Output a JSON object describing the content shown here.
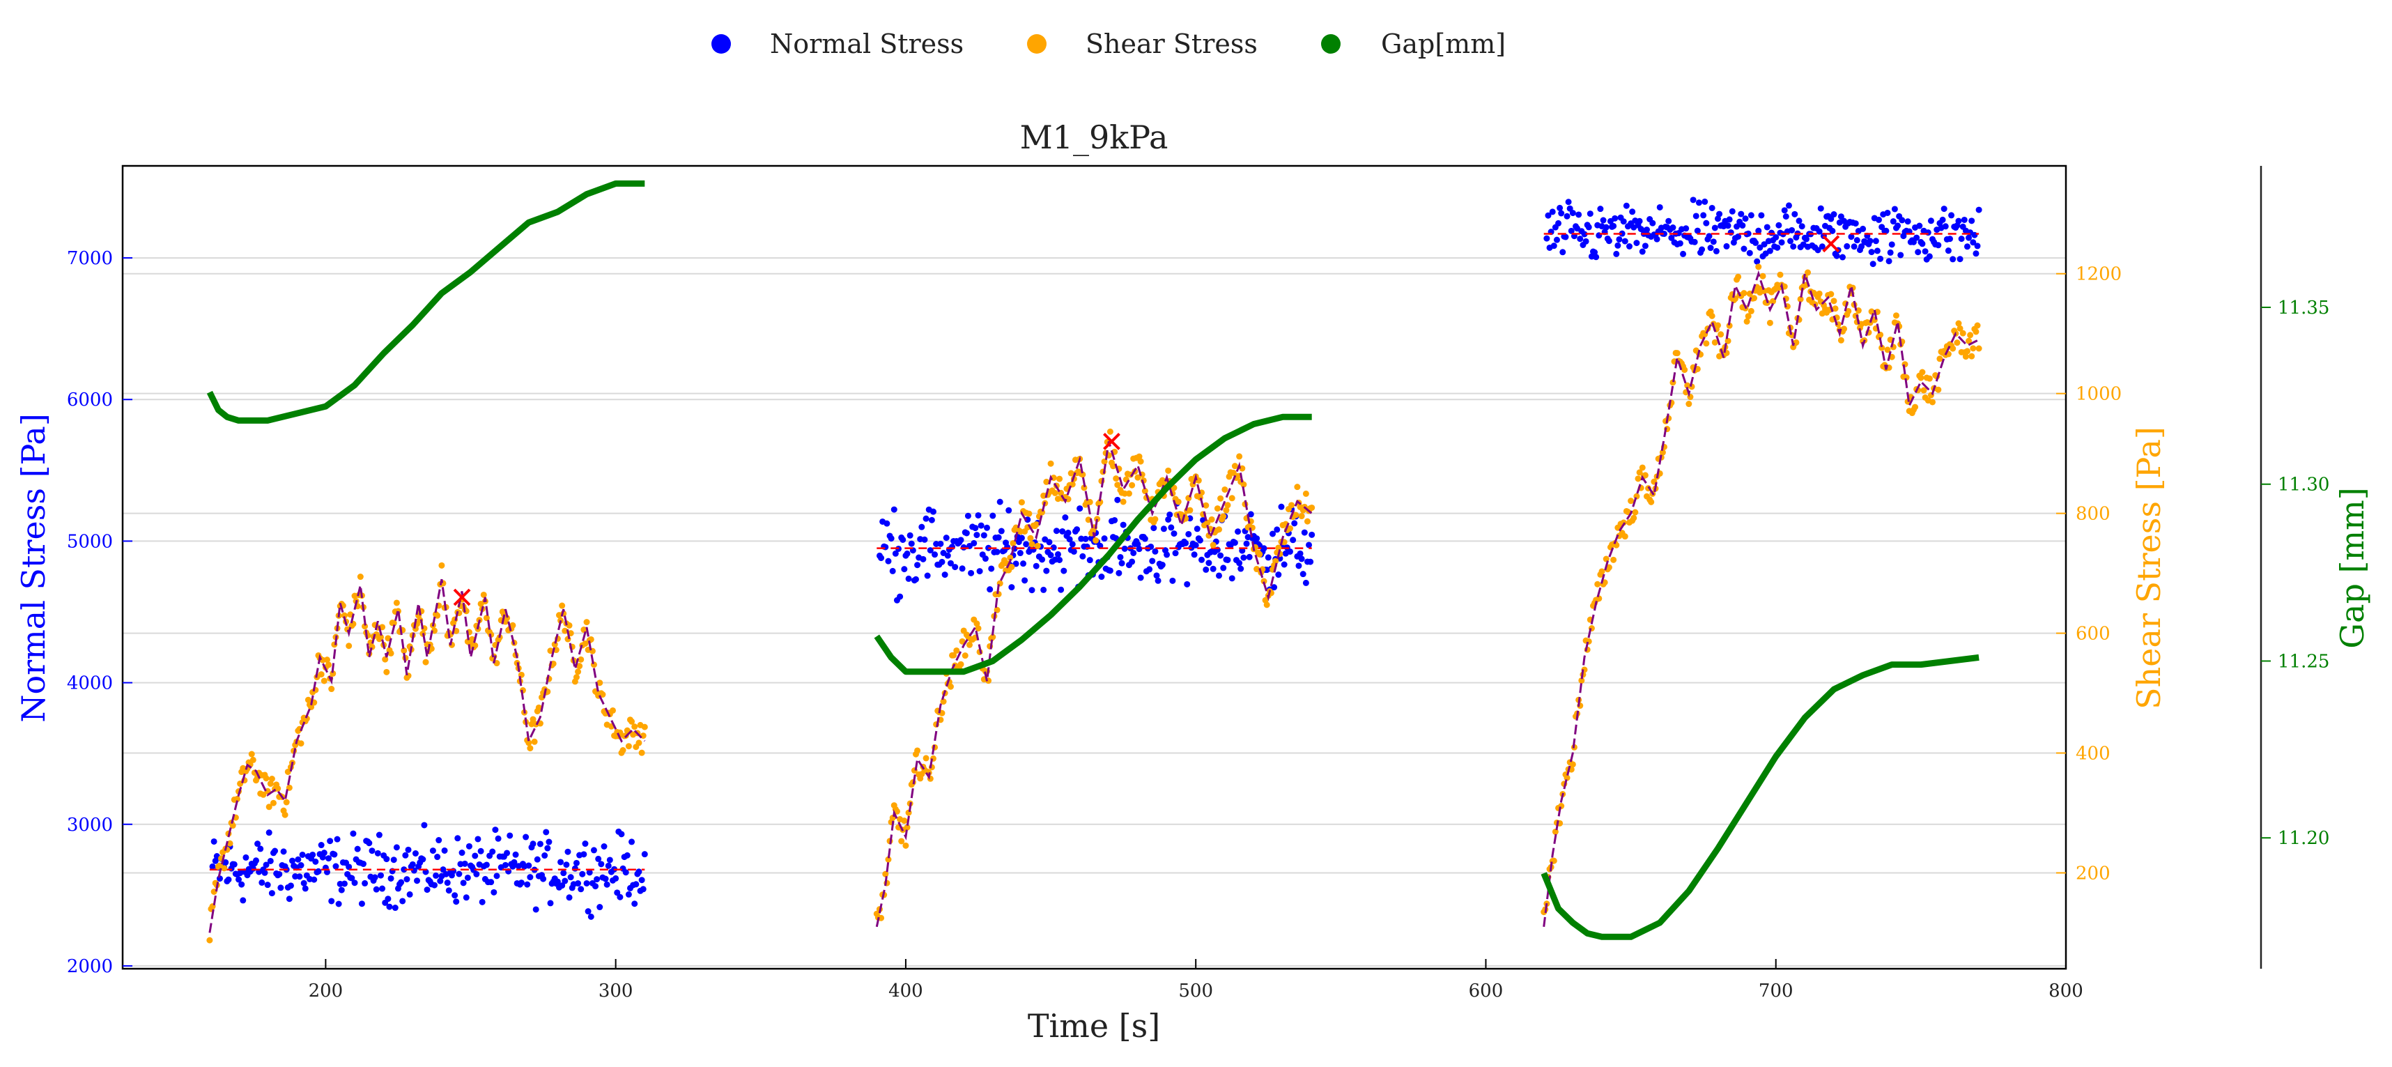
{
  "chart_data": {
    "type": "scatter",
    "title": "M1_9kPa",
    "xlabel": "Time [s]",
    "ylabel_left": "Normal Stress [Pa]",
    "ylabel_right": "Shear Stress [Pa]",
    "ylabel_far_right": "Gap [mm]",
    "xlim": [
      130,
      800
    ],
    "ylim_normal": [
      1980,
      7650
    ],
    "ylim_shear": [
      40,
      1380
    ],
    "ylim_gap": [
      11.163,
      11.39
    ],
    "xticks": [
      "200",
      "300",
      "400",
      "500",
      "600",
      "700",
      "800"
    ],
    "yticks_normal": [
      "2000",
      "3000",
      "4000",
      "5000",
      "6000",
      "7000"
    ],
    "yticks_shear": [
      "200",
      "400",
      "600",
      "800",
      "1000",
      "1200"
    ],
    "yticks_gap": [
      "11.20",
      "11.25",
      "11.30",
      "11.35"
    ],
    "grid": "horizontal",
    "legend_position": "top-center",
    "legend": [
      {
        "label": "Normal Stress",
        "color": "#0000ff"
      },
      {
        "label": "Shear Stress",
        "color": "#ffa500"
      },
      {
        "label": "Gap[mm]",
        "color": "#008000"
      }
    ],
    "colors": {
      "normal": "#0000ff",
      "shear": "#ffa500",
      "gap": "#008000",
      "smoothed": "#800080",
      "mean_line": "#ff0000",
      "peak_marker": "#ff0000"
    },
    "segments": [
      {
        "time_range": [
          160,
          310
        ],
        "normal_stress_mean": 2680,
        "normal_stress_spread": 260,
        "shear_stress_points": [
          [
            160,
            100
          ],
          [
            163,
            190
          ],
          [
            166,
            250
          ],
          [
            170,
            330
          ],
          [
            173,
            380
          ],
          [
            176,
            370
          ],
          [
            180,
            330
          ],
          [
            183,
            340
          ],
          [
            186,
            320
          ],
          [
            190,
            420
          ],
          [
            195,
            480
          ],
          [
            198,
            560
          ],
          [
            202,
            520
          ],
          [
            205,
            650
          ],
          [
            208,
            600
          ],
          [
            212,
            680
          ],
          [
            215,
            560
          ],
          [
            218,
            620
          ],
          [
            221,
            560
          ],
          [
            225,
            640
          ],
          [
            228,
            530
          ],
          [
            232,
            650
          ],
          [
            235,
            560
          ],
          [
            240,
            690
          ],
          [
            243,
            580
          ],
          [
            247,
            670
          ],
          [
            250,
            560
          ],
          [
            255,
            660
          ],
          [
            258,
            550
          ],
          [
            262,
            640
          ],
          [
            266,
            560
          ],
          [
            270,
            420
          ],
          [
            274,
            460
          ],
          [
            278,
            560
          ],
          [
            282,
            640
          ],
          [
            286,
            540
          ],
          [
            290,
            610
          ],
          [
            294,
            500
          ],
          [
            298,
            460
          ],
          [
            302,
            420
          ],
          [
            306,
            440
          ],
          [
            310,
            420
          ]
        ],
        "shear_peak": [
          247,
          660
        ],
        "gap_points": [
          [
            160,
            11.326
          ],
          [
            163,
            11.321
          ],
          [
            166,
            11.319
          ],
          [
            170,
            11.318
          ],
          [
            180,
            11.318
          ],
          [
            190,
            11.32
          ],
          [
            200,
            11.322
          ],
          [
            210,
            11.328
          ],
          [
            220,
            11.337
          ],
          [
            230,
            11.345
          ],
          [
            240,
            11.354
          ],
          [
            250,
            11.36
          ],
          [
            260,
            11.367
          ],
          [
            270,
            11.374
          ],
          [
            280,
            11.377
          ],
          [
            290,
            11.382
          ],
          [
            300,
            11.385
          ],
          [
            310,
            11.385
          ]
        ]
      },
      {
        "time_range": [
          390,
          540
        ],
        "normal_stress_mean": 4950,
        "normal_stress_spread": 300,
        "shear_stress_points": [
          [
            390,
            110
          ],
          [
            393,
            180
          ],
          [
            396,
            300
          ],
          [
            400,
            260
          ],
          [
            404,
            390
          ],
          [
            408,
            360
          ],
          [
            412,
            480
          ],
          [
            416,
            540
          ],
          [
            420,
            580
          ],
          [
            424,
            610
          ],
          [
            428,
            520
          ],
          [
            432,
            680
          ],
          [
            436,
            720
          ],
          [
            440,
            800
          ],
          [
            445,
            760
          ],
          [
            450,
            860
          ],
          [
            455,
            820
          ],
          [
            460,
            890
          ],
          [
            465,
            760
          ],
          [
            470,
            920
          ],
          [
            475,
            840
          ],
          [
            480,
            880
          ],
          [
            485,
            800
          ],
          [
            490,
            860
          ],
          [
            495,
            780
          ],
          [
            500,
            860
          ],
          [
            505,
            760
          ],
          [
            510,
            820
          ],
          [
            515,
            880
          ],
          [
            520,
            740
          ],
          [
            525,
            660
          ],
          [
            530,
            760
          ],
          [
            535,
            820
          ],
          [
            540,
            800
          ]
        ],
        "shear_peak": [
          471,
          920
        ],
        "gap_points": [
          [
            390,
            11.257
          ],
          [
            395,
            11.251
          ],
          [
            400,
            11.247
          ],
          [
            410,
            11.247
          ],
          [
            420,
            11.247
          ],
          [
            430,
            11.25
          ],
          [
            440,
            11.256
          ],
          [
            450,
            11.263
          ],
          [
            460,
            11.271
          ],
          [
            470,
            11.28
          ],
          [
            480,
            11.29
          ],
          [
            490,
            11.299
          ],
          [
            500,
            11.307
          ],
          [
            510,
            11.313
          ],
          [
            520,
            11.317
          ],
          [
            530,
            11.319
          ],
          [
            540,
            11.319
          ]
        ]
      },
      {
        "time_range": [
          620,
          770
        ],
        "normal_stress_mean": 7170,
        "normal_stress_spread": 220,
        "shear_stress_points": [
          [
            620,
            110
          ],
          [
            623,
            230
          ],
          [
            626,
            320
          ],
          [
            630,
            400
          ],
          [
            634,
            560
          ],
          [
            638,
            650
          ],
          [
            642,
            720
          ],
          [
            646,
            770
          ],
          [
            650,
            800
          ],
          [
            654,
            860
          ],
          [
            658,
            830
          ],
          [
            662,
            940
          ],
          [
            666,
            1060
          ],
          [
            670,
            1000
          ],
          [
            674,
            1080
          ],
          [
            678,
            1120
          ],
          [
            682,
            1060
          ],
          [
            686,
            1180
          ],
          [
            690,
            1140
          ],
          [
            694,
            1200
          ],
          [
            698,
            1140
          ],
          [
            702,
            1180
          ],
          [
            706,
            1080
          ],
          [
            710,
            1200
          ],
          [
            714,
            1140
          ],
          [
            718,
            1160
          ],
          [
            722,
            1100
          ],
          [
            726,
            1180
          ],
          [
            730,
            1080
          ],
          [
            734,
            1140
          ],
          [
            738,
            1040
          ],
          [
            742,
            1120
          ],
          [
            746,
            980
          ],
          [
            750,
            1020
          ],
          [
            754,
            1000
          ],
          [
            758,
            1060
          ],
          [
            762,
            1100
          ],
          [
            766,
            1080
          ],
          [
            770,
            1090
          ]
        ],
        "shear_peak": [
          719,
          1250
        ],
        "gap_points": [
          [
            620,
            11.19
          ],
          [
            625,
            11.18
          ],
          [
            630,
            11.176
          ],
          [
            635,
            11.173
          ],
          [
            640,
            11.172
          ],
          [
            645,
            11.172
          ],
          [
            650,
            11.172
          ],
          [
            655,
            11.174
          ],
          [
            660,
            11.176
          ],
          [
            670,
            11.185
          ],
          [
            680,
            11.197
          ],
          [
            690,
            11.21
          ],
          [
            700,
            11.223
          ],
          [
            710,
            11.234
          ],
          [
            720,
            11.242
          ],
          [
            730,
            11.246
          ],
          [
            740,
            11.249
          ],
          [
            750,
            11.249
          ],
          [
            760,
            11.25
          ],
          [
            770,
            11.251
          ]
        ]
      }
    ]
  }
}
